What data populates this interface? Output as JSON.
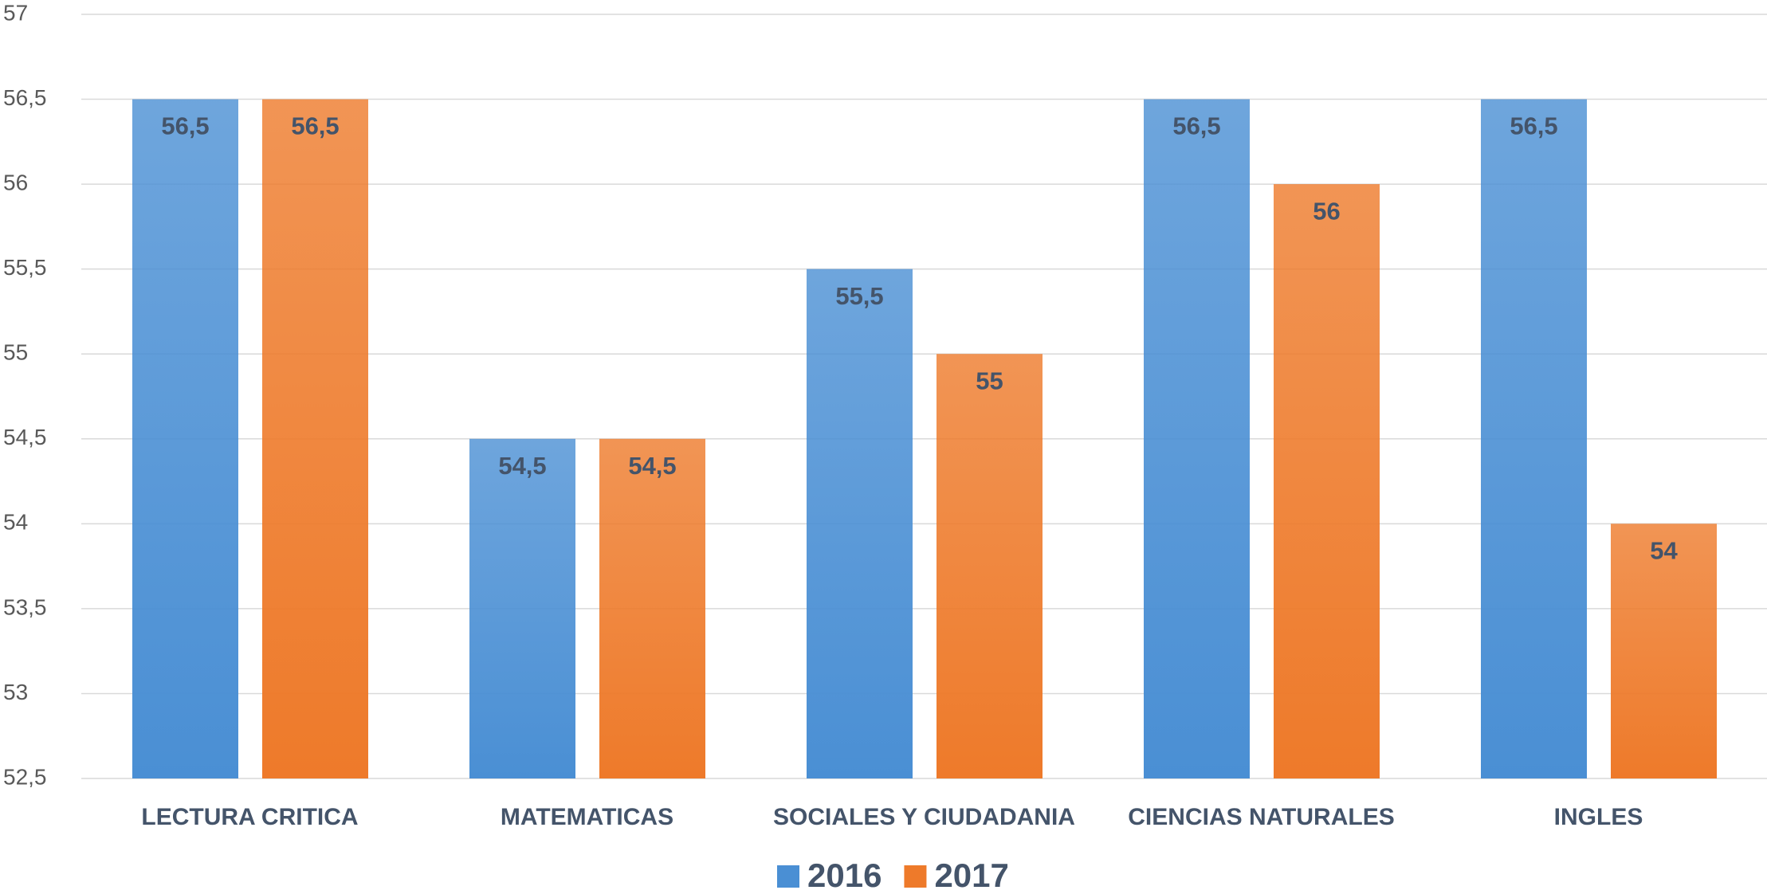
{
  "chart_data": {
    "type": "bar",
    "categories": [
      "LECTURA CRITICA",
      "MATEMATICAS",
      "SOCIALES Y CIUDADANIA",
      "CIENCIAS NATURALES",
      "INGLES"
    ],
    "series": [
      {
        "name": "2016",
        "color": "#4a8fd4",
        "values": [
          56.5,
          54.5,
          55.5,
          56.5,
          56.5
        ],
        "value_labels": [
          "56,5",
          "54,5",
          "55,5",
          "56,5",
          "56,5"
        ]
      },
      {
        "name": "2017",
        "color": "#ee7a2a",
        "values": [
          56.5,
          54.5,
          55,
          56,
          54
        ],
        "value_labels": [
          "56,5",
          "54,5",
          "55",
          "56",
          "54"
        ]
      }
    ],
    "ylim": [
      52.5,
      57
    ],
    "yticks": [
      {
        "value": 52.5,
        "label": "52,5"
      },
      53,
      {
        "value": 53.5,
        "label": "53,5"
      },
      54,
      {
        "value": 54.5,
        "label": "54,5"
      },
      55,
      {
        "value": 55.5,
        "label": "55,5"
      },
      56,
      {
        "value": 56.5,
        "label": "56,5"
      },
      57
    ],
    "grid": true,
    "legend": "bottom"
  }
}
